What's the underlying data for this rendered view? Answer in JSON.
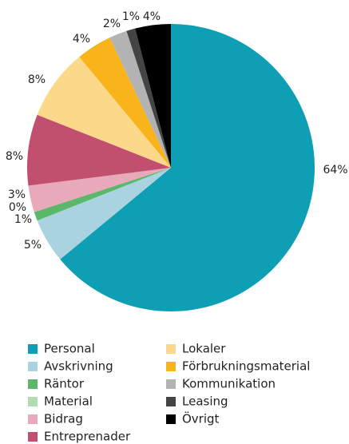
{
  "chart_data": {
    "type": "pie",
    "categories": [
      "Personal",
      "Avskrivning",
      "Räntor",
      "Material",
      "Bidrag",
      "Entreprenader",
      "Lokaler",
      "Förbrukningsmaterial",
      "Kommunikation",
      "Leasing",
      "Övrigt"
    ],
    "values": [
      64,
      5,
      1,
      0,
      3,
      8,
      8,
      4,
      2,
      1,
      4
    ],
    "value_labels": [
      "64%",
      "5%",
      "1%",
      "0%",
      "3%",
      "8%",
      "8%",
      "4%",
      "2%",
      "1%",
      "4%"
    ],
    "colors": [
      "#0e9fb5",
      "#a8d3df",
      "#5bb86a",
      "#b0dcb4",
      "#e8a9bb",
      "#c0506e",
      "#fcd98a",
      "#f9b41c",
      "#b3b3b3",
      "#444444",
      "#000000"
    ],
    "legend": "bottom"
  }
}
